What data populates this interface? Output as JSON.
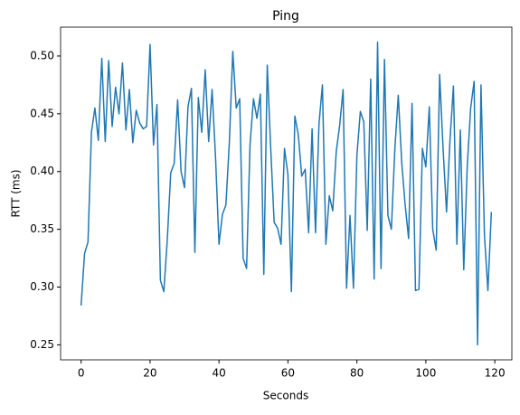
{
  "chart_data": {
    "type": "line",
    "title": "Ping",
    "x_label": "Seconds",
    "y_label": "RTT (ms)",
    "x": [
      0,
      1,
      2,
      3,
      4,
      5,
      6,
      7,
      8,
      9,
      10,
      11,
      12,
      13,
      14,
      15,
      16,
      17,
      18,
      19,
      20,
      21,
      22,
      23,
      24,
      25,
      26,
      27,
      28,
      29,
      30,
      31,
      32,
      33,
      34,
      35,
      36,
      37,
      38,
      39,
      40,
      41,
      42,
      43,
      44,
      45,
      46,
      47,
      48,
      49,
      50,
      51,
      52,
      53,
      54,
      55,
      56,
      57,
      58,
      59,
      60,
      61,
      62,
      63,
      64,
      65,
      66,
      67,
      68,
      69,
      70,
      71,
      72,
      73,
      74,
      75,
      76,
      77,
      78,
      79,
      80,
      81,
      82,
      83,
      84,
      85,
      86,
      87,
      88,
      89,
      90,
      91,
      92,
      93,
      94,
      95,
      96,
      97,
      98,
      99,
      100,
      101,
      102,
      103,
      104,
      105,
      106,
      107,
      108,
      109,
      110,
      111,
      112,
      113,
      114,
      115,
      116,
      117,
      118,
      119
    ],
    "values": [
      0.284,
      0.329,
      0.339,
      0.434,
      0.455,
      0.427,
      0.498,
      0.426,
      0.496,
      0.439,
      0.473,
      0.45,
      0.494,
      0.436,
      0.471,
      0.425,
      0.453,
      0.442,
      0.437,
      0.439,
      0.51,
      0.423,
      0.458,
      0.306,
      0.296,
      0.341,
      0.399,
      0.407,
      0.462,
      0.4,
      0.386,
      0.456,
      0.472,
      0.33,
      0.464,
      0.434,
      0.488,
      0.426,
      0.471,
      0.412,
      0.337,
      0.363,
      0.371,
      0.425,
      0.504,
      0.455,
      0.463,
      0.325,
      0.316,
      0.423,
      0.463,
      0.446,
      0.467,
      0.311,
      0.492,
      0.42,
      0.356,
      0.351,
      0.337,
      0.42,
      0.397,
      0.296,
      0.448,
      0.432,
      0.396,
      0.402,
      0.347,
      0.437,
      0.347,
      0.441,
      0.475,
      0.337,
      0.379,
      0.366,
      0.417,
      0.44,
      0.471,
      0.299,
      0.362,
      0.299,
      0.414,
      0.452,
      0.443,
      0.349,
      0.48,
      0.307,
      0.512,
      0.316,
      0.497,
      0.362,
      0.35,
      0.419,
      0.466,
      0.408,
      0.371,
      0.342,
      0.459,
      0.297,
      0.298,
      0.42,
      0.404,
      0.456,
      0.35,
      0.332,
      0.484,
      0.42,
      0.365,
      0.427,
      0.474,
      0.337,
      0.436,
      0.315,
      0.404,
      0.455,
      0.478,
      0.25,
      0.475,
      0.345,
      0.297,
      0.365
    ],
    "color": "#1f77b4",
    "xlim": [
      -5.95,
      124.95
    ],
    "xticks": [
      0,
      20,
      40,
      60,
      80,
      100,
      120
    ],
    "ylim": [
      0.237,
      0.525
    ],
    "yticks": [
      0.25,
      {
        "value": 0.3,
        "label": "0.30"
      },
      0.35,
      {
        "value": 0.4,
        "label": "0.40"
      },
      0.45,
      {
        "value": 0.5,
        "label": "0.50"
      }
    ]
  }
}
